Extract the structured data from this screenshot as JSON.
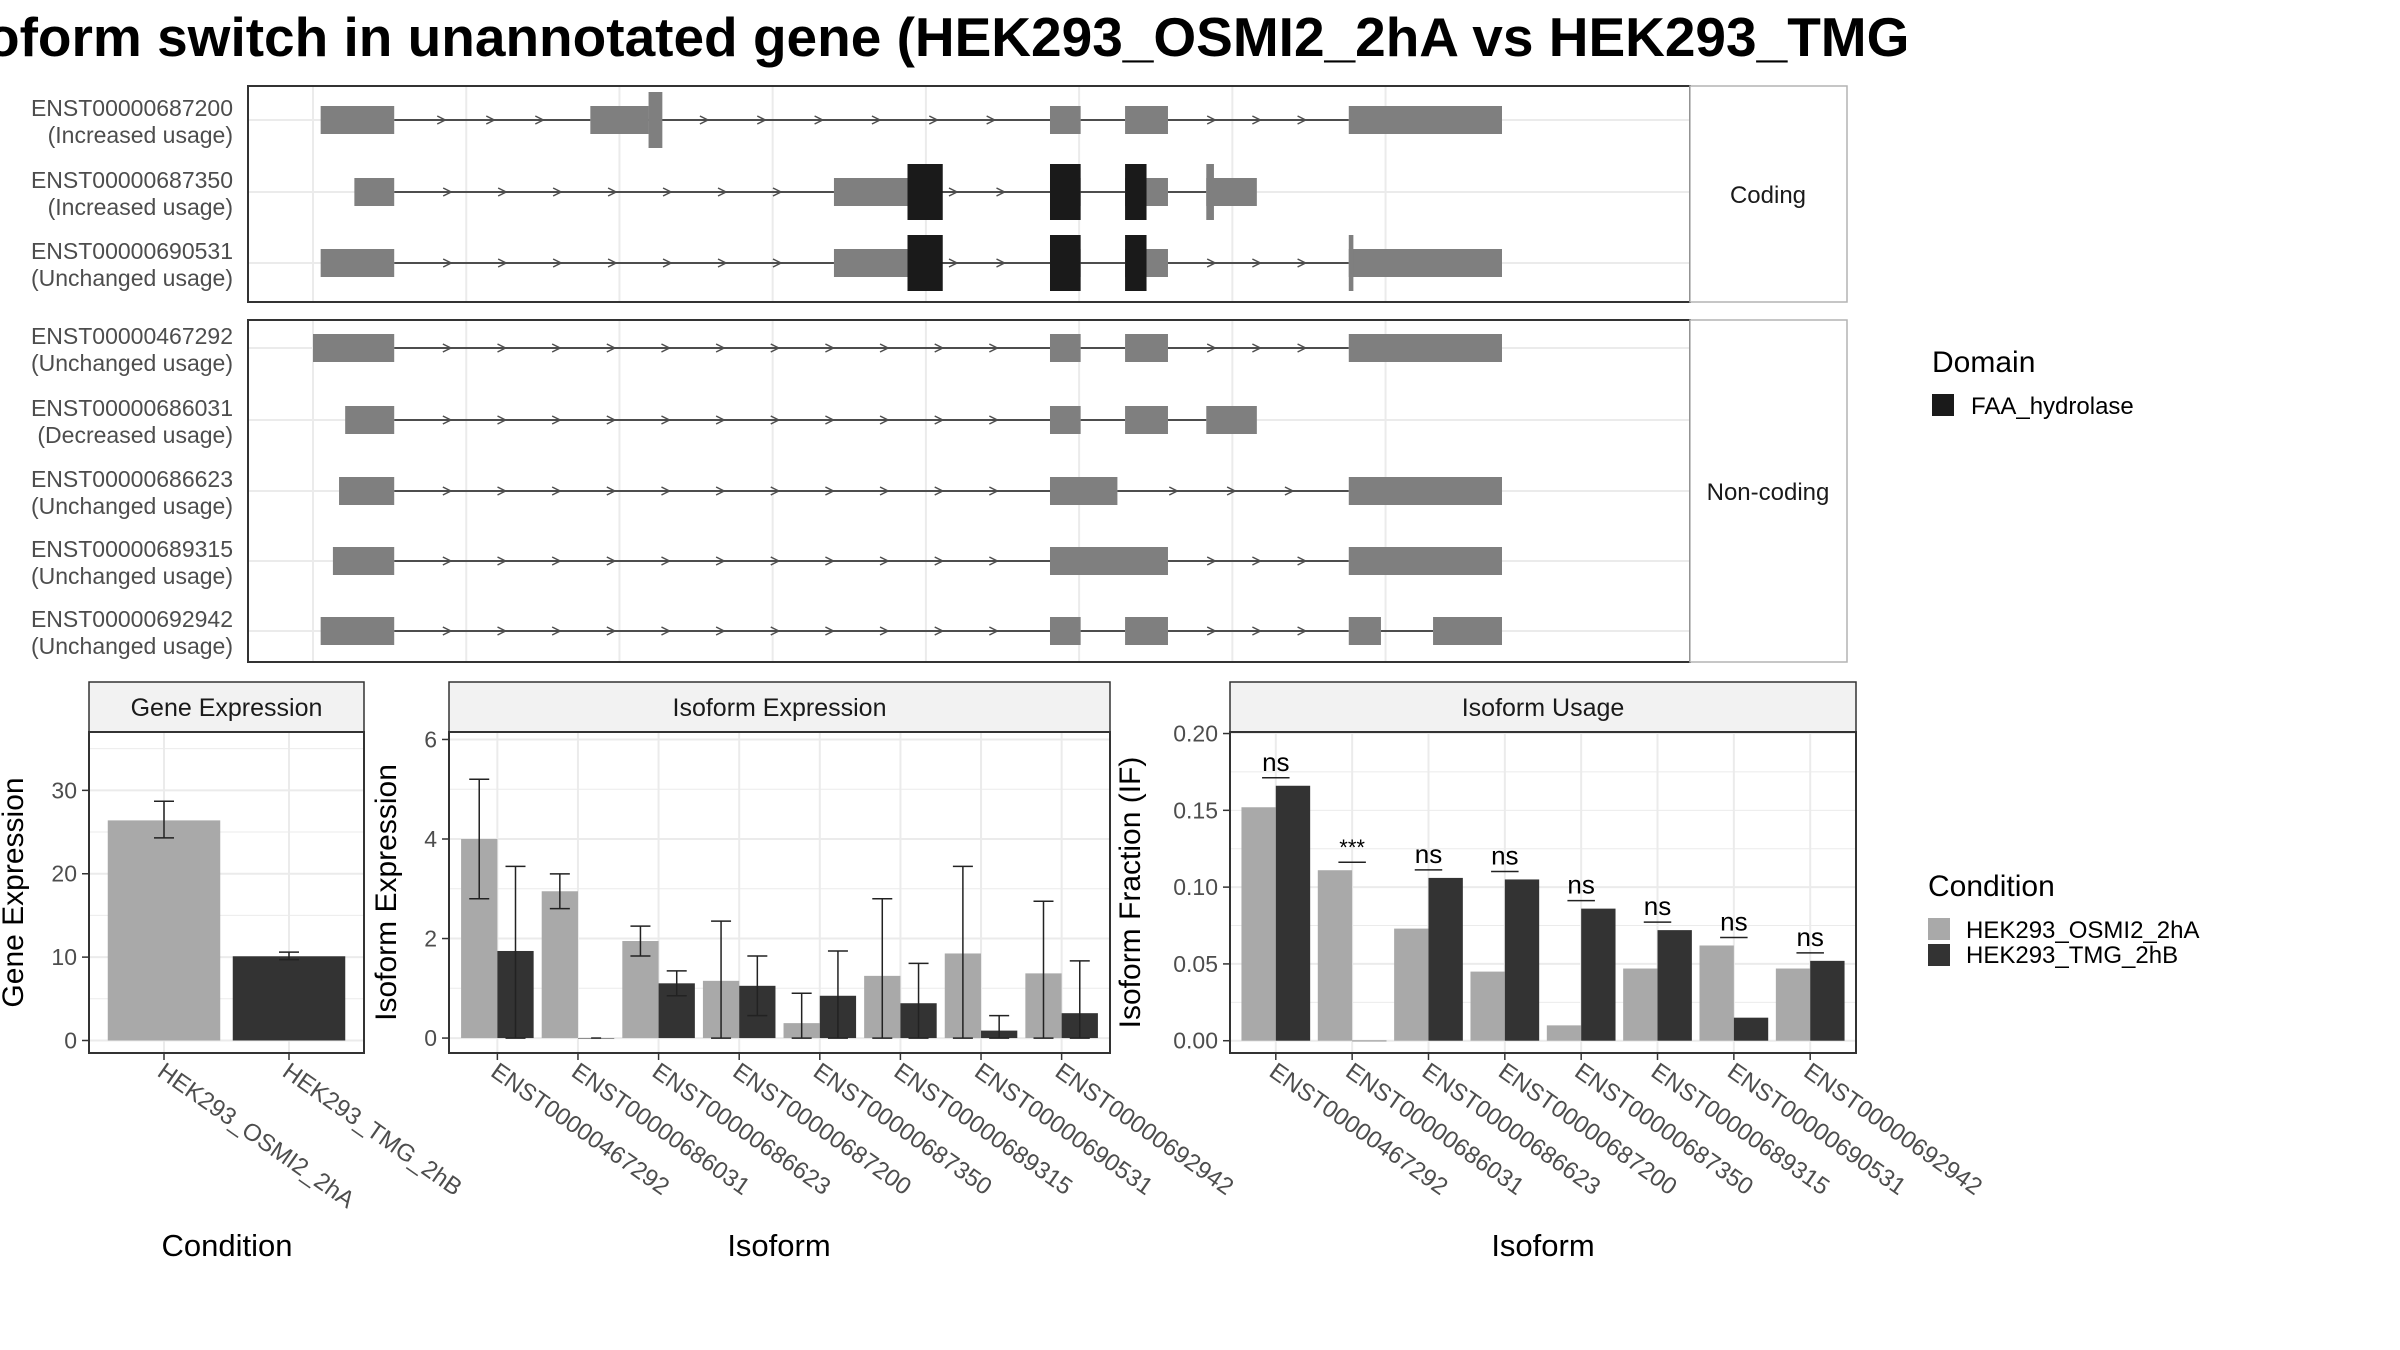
{
  "title": "oform switch in unannotated gene (HEK293_OSMI2_2hA vs HEK293_TMG",
  "colors": {
    "exon": "#7f7f7f",
    "domain": "#1a1a1a",
    "cond1": "#a9a9a9",
    "cond2": "#333333",
    "grid": "#ebebeb",
    "strip": "#f2f2f2",
    "border": "#333333",
    "line": "#4d4d4d"
  },
  "structure": {
    "coding_label": "Coding",
    "noncoding_label": "Non-coding",
    "coding": [
      {
        "id": "ENST00000687200",
        "usage": "(Increased usage)",
        "exons": [
          [
            0.5,
            5.3
          ],
          [
            18.1,
            21.9
          ],
          [
            48.1,
            50.1
          ],
          [
            53.0,
            55.8
          ],
          [
            67.6,
            77.6
          ]
        ],
        "thin": [
          [
            21.9,
            22.8
          ]
        ],
        "domains": []
      },
      {
        "id": "ENST00000687350",
        "usage": "(Increased usage)",
        "exons": [
          [
            2.7,
            5.3
          ],
          [
            34.0,
            38.8
          ],
          [
            48.1,
            50.1
          ],
          [
            53.0,
            55.8
          ],
          [
            58.3,
            61.6
          ]
        ],
        "thin": [
          [
            58.3,
            58.8
          ]
        ],
        "domains": [
          [
            38.8,
            41.1
          ],
          [
            48.1,
            50.1
          ],
          [
            53.0,
            54.4
          ]
        ]
      },
      {
        "id": "ENST00000690531",
        "usage": "(Unchanged usage)",
        "exons": [
          [
            0.5,
            5.3
          ],
          [
            34.0,
            38.8
          ],
          [
            48.1,
            50.1
          ],
          [
            53.0,
            55.8
          ],
          [
            67.6,
            77.6
          ]
        ],
        "thin": [
          [
            67.6,
            67.9
          ]
        ],
        "domains": [
          [
            38.8,
            41.1
          ],
          [
            48.1,
            50.1
          ],
          [
            53.0,
            54.4
          ]
        ]
      }
    ],
    "noncoding": [
      {
        "id": "ENST00000467292",
        "usage": "(Unchanged usage)",
        "exons": [
          [
            0.0,
            5.3
          ],
          [
            48.1,
            50.1
          ],
          [
            53.0,
            55.8
          ],
          [
            67.6,
            77.6
          ]
        ]
      },
      {
        "id": "ENST00000686031",
        "usage": "(Decreased usage)",
        "exons": [
          [
            2.1,
            5.3
          ],
          [
            48.1,
            50.1
          ],
          [
            53.0,
            55.8
          ],
          [
            58.3,
            61.6
          ]
        ]
      },
      {
        "id": "ENST00000686623",
        "usage": "(Unchanged usage)",
        "exons": [
          [
            1.7,
            5.3
          ],
          [
            48.1,
            52.5
          ],
          [
            67.6,
            77.6
          ]
        ]
      },
      {
        "id": "ENST00000689315",
        "usage": "(Unchanged usage)",
        "exons": [
          [
            1.3,
            5.3
          ],
          [
            48.1,
            55.8
          ],
          [
            67.6,
            77.6
          ]
        ]
      },
      {
        "id": "ENST00000692942",
        "usage": "(Unchanged usage)",
        "exons": [
          [
            0.5,
            5.3
          ],
          [
            48.1,
            50.1
          ],
          [
            53.0,
            55.8
          ],
          [
            67.6,
            69.7
          ],
          [
            73.1,
            77.6
          ]
        ]
      }
    ]
  },
  "legend_domain": {
    "title": "Domain",
    "items": [
      "FAA_hydrolase"
    ]
  },
  "legend_condition": {
    "title": "Condition",
    "items": [
      "HEK293_OSMI2_2hA",
      "HEK293_TMG_2hB"
    ]
  },
  "chart_data": [
    {
      "type": "bar",
      "panel": "Gene Expression",
      "xlabel": "Condition",
      "ylabel": "Gene Expression",
      "categories": [
        "HEK293_OSMI2_2hA",
        "HEK293_TMG_2hB"
      ],
      "values": [
        26.4,
        10.1
      ],
      "errors": [
        [
          24.3,
          28.7
        ],
        [
          9.7,
          10.6
        ]
      ],
      "ylim": [
        -1.5,
        37
      ],
      "yticks": [
        0,
        10,
        20,
        30
      ]
    },
    {
      "type": "bar",
      "panel": "Isoform Expression",
      "xlabel": "Isoform",
      "ylabel": "Isoform Expression",
      "categories": [
        "ENST00000467292",
        "ENST00000686031",
        "ENST00000686623",
        "ENST00000687200",
        "ENST00000687350",
        "ENST00000689315",
        "ENST00000690531",
        "ENST00000692942"
      ],
      "series": [
        {
          "name": "HEK293_OSMI2_2hA",
          "values": [
            4.0,
            2.95,
            1.95,
            1.15,
            0.3,
            1.25,
            1.7,
            1.3
          ],
          "errors": [
            [
              2.8,
              5.2
            ],
            [
              2.6,
              3.3
            ],
            [
              1.65,
              2.25
            ],
            [
              0.0,
              2.35
            ],
            [
              0.0,
              0.9
            ],
            [
              0.0,
              2.8
            ],
            [
              0.0,
              3.45
            ],
            [
              0.0,
              2.75
            ]
          ]
        },
        {
          "name": "HEK293_TMG_2hB",
          "values": [
            1.75,
            0.0,
            1.1,
            1.05,
            0.85,
            0.7,
            0.15,
            0.5
          ],
          "errors": [
            [
              0.0,
              3.45
            ],
            [
              0.0,
              0.0
            ],
            [
              0.85,
              1.35
            ],
            [
              0.45,
              1.65
            ],
            [
              0.0,
              1.75
            ],
            [
              0.0,
              1.5
            ],
            [
              0.0,
              0.45
            ],
            [
              0.0,
              1.55
            ]
          ]
        }
      ],
      "ylim": [
        -0.3,
        6.15
      ],
      "yticks": [
        0,
        2,
        4,
        6
      ]
    },
    {
      "type": "bar",
      "panel": "Isoform Usage",
      "xlabel": "Isoform",
      "ylabel": "Isoform Fraction (IF)",
      "categories": [
        "ENST00000467292",
        "ENST00000686031",
        "ENST00000686623",
        "ENST00000687200",
        "ENST00000687350",
        "ENST00000689315",
        "ENST00000690531",
        "ENST00000692942"
      ],
      "series": [
        {
          "name": "HEK293_OSMI2_2hA",
          "values": [
            0.152,
            0.111,
            0.073,
            0.045,
            0.01,
            0.047,
            0.062,
            0.047
          ]
        },
        {
          "name": "HEK293_TMG_2hB",
          "values": [
            0.166,
            0.0,
            0.106,
            0.105,
            0.086,
            0.072,
            0.015,
            0.052
          ]
        }
      ],
      "significance": [
        "ns",
        "***",
        "ns",
        "ns",
        "ns",
        "ns",
        "ns",
        "ns"
      ],
      "ylim": [
        -0.008,
        0.201
      ],
      "yticks": [
        "0.00",
        "0.05",
        "0.10",
        "0.15",
        "0.20"
      ]
    }
  ]
}
